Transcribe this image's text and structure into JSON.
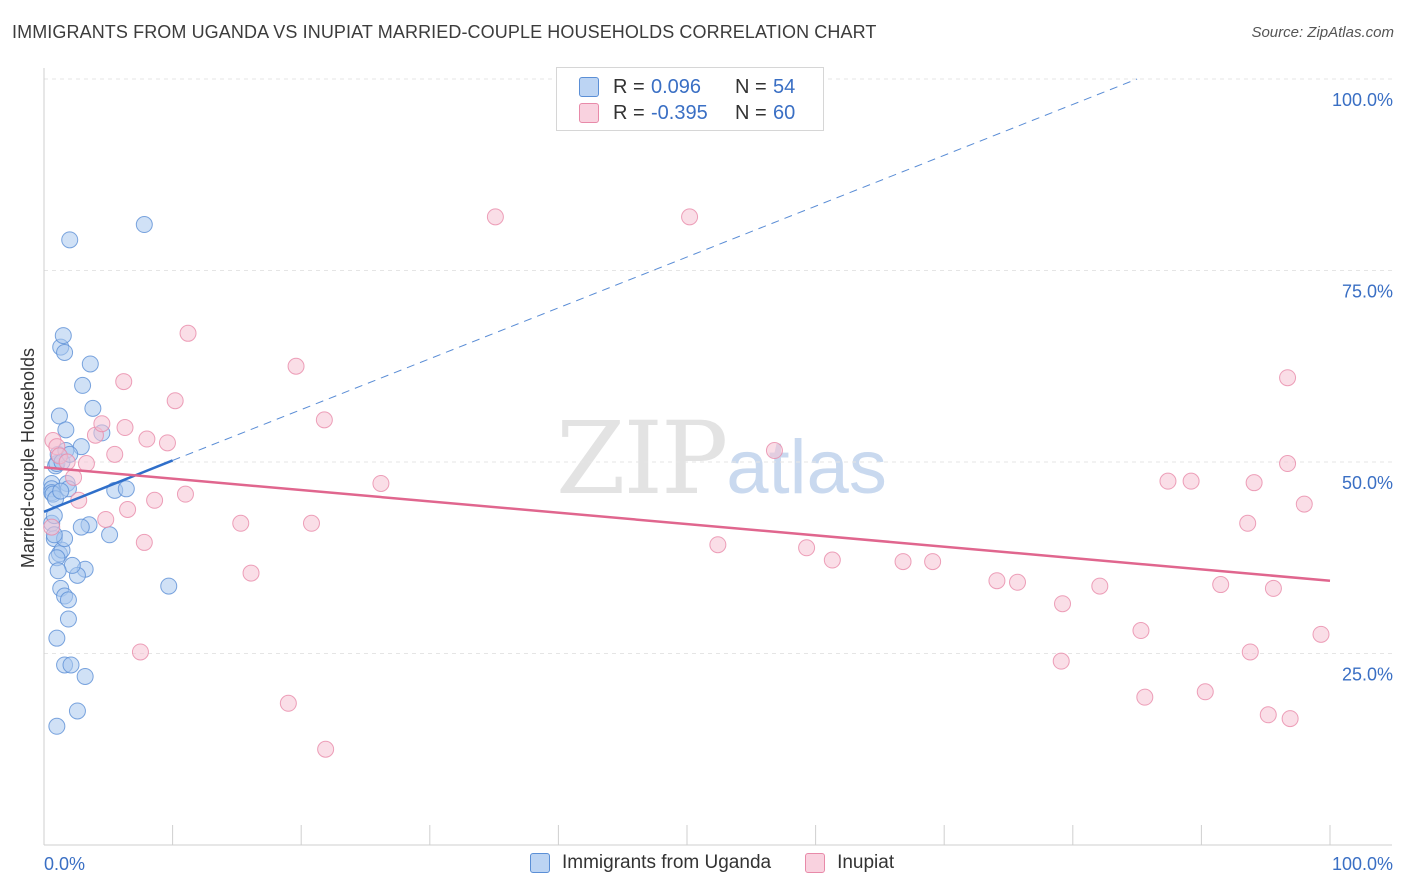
{
  "header": {
    "title": "IMMIGRANTS FROM UGANDA VS INUPIAT MARRIED-COUPLE HOUSEHOLDS CORRELATION CHART",
    "source": "Source: ZipAtlas.com"
  },
  "watermark": {
    "zip": "ZIP",
    "atlas": "atlas"
  },
  "legend": {
    "rows": [
      {
        "r_label": "R =",
        "r_value": "0.096",
        "n_label": "N =",
        "n_value": "54"
      },
      {
        "r_label": "R =",
        "r_value": "-0.395",
        "n_label": "N =",
        "n_value": "60"
      }
    ]
  },
  "bottom_legend": {
    "series1": "Immigrants from Uganda",
    "series2": "Inupiat"
  },
  "colors": {
    "blue_fill": "#a9c8ef",
    "blue_stroke": "#5b8fd6",
    "blue_line": "#2f6fca",
    "pink_fill": "#f6c2d3",
    "pink_stroke": "#e88aa9",
    "pink_line": "#e0668e",
    "axis_text": "#3a6fc4",
    "grid": "#e5e5e5"
  },
  "chart_data": {
    "type": "scatter",
    "title": "IMMIGRANTS FROM UGANDA VS INUPIAT MARRIED-COUPLE HOUSEHOLDS CORRELATION CHART",
    "xlabel": "",
    "ylabel": "Married-couple Households",
    "xlim": [
      0,
      100
    ],
    "ylim": [
      0,
      100
    ],
    "x_tick_labels": [
      "0.0%",
      "100.0%"
    ],
    "y_ticks": [
      {
        "value": 25,
        "label": "25.0%"
      },
      {
        "value": 50,
        "label": "50.0%"
      },
      {
        "value": 75,
        "label": "75.0%"
      },
      {
        "value": 100,
        "label": "100.0%"
      }
    ],
    "series": [
      {
        "name": "Immigrants from Uganda",
        "r": 0.096,
        "n": 54,
        "trend": {
          "x0": 0,
          "y0": 43.5,
          "x1": 10,
          "y1": 50.2,
          "dashed_to_x": 85,
          "dashed_to_y": 100
        },
        "points": [
          [
            0.6,
            47.2
          ],
          [
            0.6,
            46.5
          ],
          [
            0.6,
            46.0
          ],
          [
            0.7,
            45.8
          ],
          [
            0.8,
            40.0
          ],
          [
            0.6,
            42.0
          ],
          [
            0.9,
            49.5
          ],
          [
            1.0,
            49.8
          ],
          [
            1.1,
            51.0
          ],
          [
            1.2,
            56.0
          ],
          [
            1.3,
            65.0
          ],
          [
            1.5,
            66.5
          ],
          [
            1.6,
            64.3
          ],
          [
            1.7,
            51.5
          ],
          [
            1.8,
            47.2
          ],
          [
            1.9,
            46.5
          ],
          [
            1.2,
            38.0
          ],
          [
            1.4,
            38.5
          ],
          [
            1.6,
            40.0
          ],
          [
            1.3,
            33.5
          ],
          [
            1.6,
            32.5
          ],
          [
            1.9,
            32.0
          ],
          [
            1.9,
            29.5
          ],
          [
            1.0,
            27.0
          ],
          [
            1.6,
            23.5
          ],
          [
            2.1,
            23.5
          ],
          [
            2.6,
            17.5
          ],
          [
            1.0,
            15.5
          ],
          [
            2.0,
            79.0
          ],
          [
            7.8,
            81.0
          ],
          [
            3.0,
            60.0
          ],
          [
            3.6,
            62.8
          ],
          [
            3.8,
            57.0
          ],
          [
            2.9,
            52.0
          ],
          [
            4.5,
            53.8
          ],
          [
            3.5,
            41.8
          ],
          [
            2.9,
            41.5
          ],
          [
            5.1,
            40.5
          ],
          [
            5.5,
            46.3
          ],
          [
            6.4,
            46.5
          ],
          [
            3.2,
            36.0
          ],
          [
            2.6,
            35.2
          ],
          [
            9.7,
            33.8
          ],
          [
            3.2,
            22.0
          ],
          [
            1.0,
            37.5
          ],
          [
            1.4,
            50.0
          ],
          [
            2.0,
            51.0
          ],
          [
            0.9,
            45.2
          ],
          [
            1.3,
            46.2
          ],
          [
            2.2,
            36.5
          ],
          [
            0.8,
            40.5
          ],
          [
            0.8,
            43.0
          ],
          [
            1.1,
            35.8
          ],
          [
            1.7,
            54.2
          ]
        ]
      },
      {
        "name": "Inupiat",
        "r": -0.395,
        "n": 60,
        "trend": {
          "x0": 0,
          "y0": 49.3,
          "x1": 100,
          "y1": 34.5
        },
        "points": [
          [
            0.6,
            41.5
          ],
          [
            0.7,
            52.8
          ],
          [
            1.0,
            52.0
          ],
          [
            1.2,
            50.8
          ],
          [
            1.8,
            50.0
          ],
          [
            2.3,
            48.0
          ],
          [
            2.7,
            45.0
          ],
          [
            3.3,
            49.8
          ],
          [
            4.0,
            53.5
          ],
          [
            4.5,
            55.0
          ],
          [
            4.8,
            42.5
          ],
          [
            5.5,
            51.0
          ],
          [
            6.2,
            60.5
          ],
          [
            6.3,
            54.5
          ],
          [
            6.5,
            43.8
          ],
          [
            7.8,
            39.5
          ],
          [
            8.0,
            53.0
          ],
          [
            8.6,
            45.0
          ],
          [
            9.6,
            52.5
          ],
          [
            10.2,
            58.0
          ],
          [
            11.0,
            45.8
          ],
          [
            11.2,
            66.8
          ],
          [
            15.3,
            42.0
          ],
          [
            16.1,
            35.5
          ],
          [
            19.0,
            18.5
          ],
          [
            19.6,
            62.5
          ],
          [
            20.8,
            42.0
          ],
          [
            21.9,
            12.5
          ],
          [
            21.8,
            55.5
          ],
          [
            26.2,
            47.2
          ],
          [
            7.5,
            25.2
          ],
          [
            35.1,
            82.0
          ],
          [
            50.2,
            82.0
          ],
          [
            52.4,
            39.2
          ],
          [
            56.8,
            51.5
          ],
          [
            59.3,
            38.8
          ],
          [
            61.3,
            37.2
          ],
          [
            66.8,
            37.0
          ],
          [
            69.1,
            37.0
          ],
          [
            74.1,
            34.5
          ],
          [
            75.7,
            34.3
          ],
          [
            79.2,
            31.5
          ],
          [
            79.1,
            24.0
          ],
          [
            82.1,
            33.8
          ],
          [
            85.3,
            28.0
          ],
          [
            85.6,
            19.3
          ],
          [
            87.4,
            47.5
          ],
          [
            89.2,
            47.5
          ],
          [
            90.3,
            20.0
          ],
          [
            91.5,
            34.0
          ],
          [
            93.6,
            42.0
          ],
          [
            93.8,
            25.2
          ],
          [
            94.1,
            47.3
          ],
          [
            95.2,
            17.0
          ],
          [
            95.6,
            33.5
          ],
          [
            96.9,
            16.5
          ],
          [
            96.7,
            61.0
          ],
          [
            96.7,
            49.8
          ],
          [
            98.0,
            44.5
          ],
          [
            99.3,
            27.5
          ]
        ]
      }
    ]
  }
}
